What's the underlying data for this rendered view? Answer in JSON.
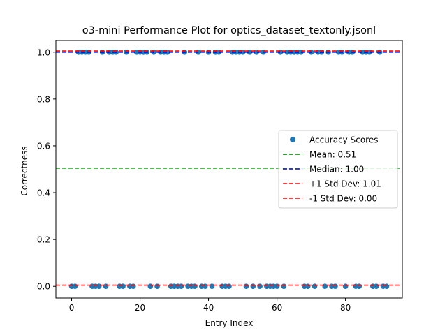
{
  "chart_data": {
    "type": "scatter",
    "title": "o3-mini Performance Plot for optics_dataset_textonly.jsonl",
    "xlabel": "Entry Index",
    "ylabel": "Correctness",
    "xlim": [
      -4.6,
      96.6
    ],
    "ylim": [
      -0.05,
      1.05
    ],
    "xticks": [
      0,
      20,
      40,
      60,
      80
    ],
    "yticks": [
      0.0,
      0.2,
      0.4,
      0.6,
      0.8,
      1.0
    ],
    "xtick_labels": [
      "0",
      "20",
      "40",
      "60",
      "80"
    ],
    "ytick_labels": [
      "0.0",
      "0.2",
      "0.4",
      "0.6",
      "0.8",
      "1.0"
    ],
    "grid": false,
    "legend_position": "center-right",
    "series": [
      {
        "name": "Accuracy Scores",
        "kind": "scatter",
        "color": "#1f77b4",
        "x": [
          0,
          1,
          2,
          3,
          4,
          5,
          6,
          7,
          8,
          9,
          10,
          11,
          12,
          13,
          14,
          15,
          16,
          17,
          18,
          19,
          20,
          21,
          22,
          23,
          24,
          25,
          26,
          27,
          28,
          29,
          30,
          31,
          32,
          33,
          34,
          35,
          36,
          37,
          38,
          39,
          40,
          41,
          42,
          43,
          44,
          45,
          46,
          47,
          48,
          49,
          50,
          51,
          52,
          53,
          54,
          55,
          56,
          57,
          58,
          59,
          60,
          61,
          62,
          63,
          64,
          65,
          66,
          67,
          68,
          69,
          70,
          71,
          72,
          73,
          74,
          75,
          76,
          77,
          78,
          79,
          80,
          81,
          82,
          83,
          84,
          85,
          86,
          87,
          88,
          89,
          90,
          91,
          92
        ],
        "y": [
          0,
          0,
          1,
          1,
          1,
          1,
          0,
          0,
          0,
          1,
          0,
          1,
          1,
          1,
          0,
          0,
          1,
          0,
          0,
          1,
          1,
          1,
          1,
          0,
          1,
          0,
          1,
          1,
          1,
          0,
          0,
          0,
          0,
          1,
          0,
          0,
          0,
          1,
          0,
          0,
          1,
          0,
          1,
          1,
          0,
          0,
          0,
          1,
          1,
          1,
          1,
          0,
          1,
          0,
          1,
          0,
          1,
          0,
          0,
          0,
          0,
          1,
          0,
          1,
          1,
          1,
          1,
          1,
          0,
          0,
          1,
          0,
          1,
          1,
          0,
          1,
          0,
          0,
          1,
          1,
          0,
          1,
          1,
          0,
          0,
          1,
          1,
          1,
          0,
          0,
          1,
          0,
          0
        ]
      }
    ],
    "lines": [
      {
        "name": "Mean: 0.51",
        "value": 0.505,
        "color": "#008000"
      },
      {
        "name": "Median: 1.00",
        "value": 1.0,
        "color": "#0000bf"
      },
      {
        "name": "+1 Std Dev: 1.01",
        "value": 1.005,
        "color": "#ff0000"
      },
      {
        "name": "-1 Std Dev: 0.00",
        "value": 0.005,
        "color": "#ff0000"
      }
    ]
  }
}
